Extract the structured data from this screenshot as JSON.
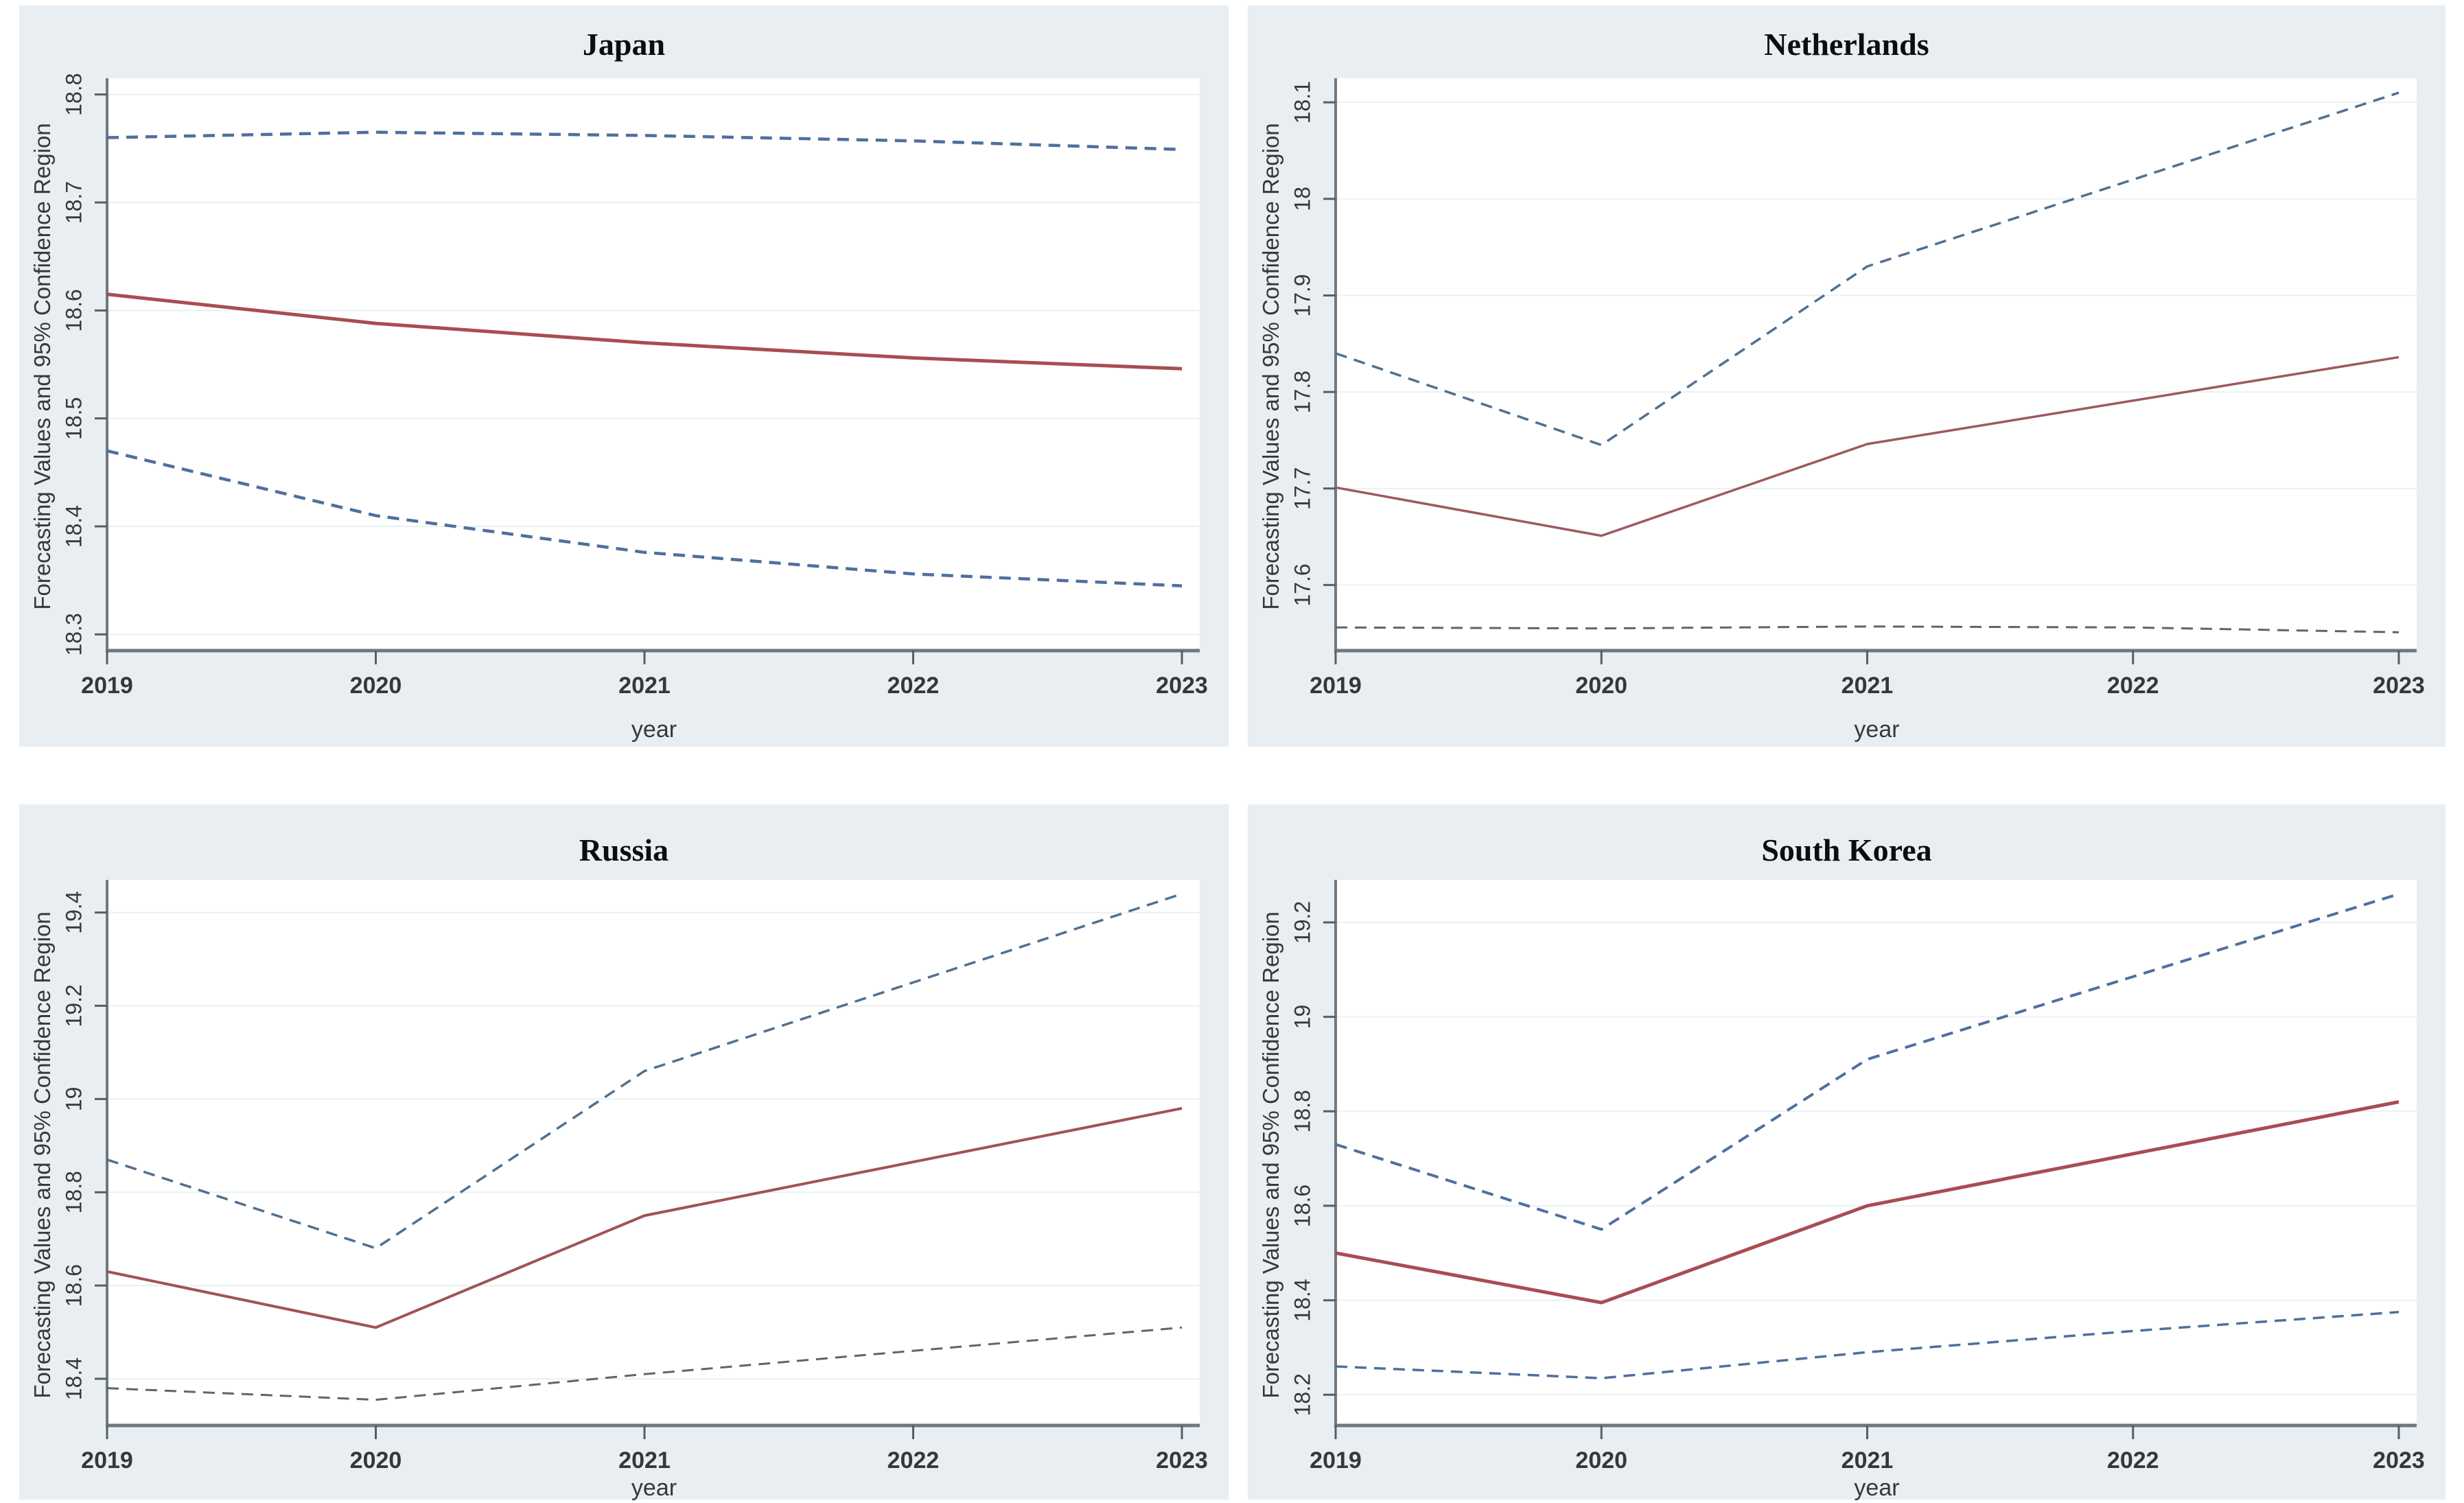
{
  "figure": {
    "description": "Four-panel forecast figure, 95% confidence regions by country",
    "panel_background": "#e8eef1",
    "plot_background": "#ffffff",
    "forecast_color": "#a84d52",
    "ci_color": "#4f6f9e",
    "ci_gray_color": "#5a6673"
  },
  "chart_data": [
    {
      "type": "line",
      "title": "Japan",
      "xlabel": "year",
      "ylabel": "Forecasting Values and 95% Confidence Region",
      "x": [
        2019,
        2020,
        2021,
        2022,
        2023
      ],
      "xticks": [
        2019,
        2020,
        2021,
        2022,
        2023
      ],
      "yticks": [
        18.3,
        18.4,
        18.5,
        18.6,
        18.7,
        18.8
      ],
      "xlim": [
        2019,
        2023
      ],
      "ylim": [
        18.285,
        18.815
      ],
      "grid": "horizontal",
      "legend": "none",
      "series": [
        {
          "name": "upper-95-ci",
          "style": "dashed",
          "color": "#4f6f9e",
          "width": 4.5,
          "values": [
            18.76,
            18.765,
            18.762,
            18.757,
            18.749
          ]
        },
        {
          "name": "point-forecast",
          "style": "solid",
          "color": "#a84d52",
          "width": 5,
          "values": [
            18.615,
            18.588,
            18.57,
            18.556,
            18.546
          ]
        },
        {
          "name": "lower-95-ci",
          "style": "dashed",
          "color": "#4f6f9e",
          "width": 4.5,
          "values": [
            18.47,
            18.41,
            18.376,
            18.356,
            18.345
          ]
        }
      ]
    },
    {
      "type": "line",
      "title": "Netherlands",
      "xlabel": "year",
      "ylabel": "Forecasting Values and 95% Confidence Region",
      "x": [
        2019,
        2020,
        2021,
        2022,
        2023
      ],
      "xticks": [
        2019,
        2020,
        2021,
        2022,
        2023
      ],
      "yticks": [
        17.6,
        17.7,
        17.8,
        17.9,
        18,
        18.1
      ],
      "xlim": [
        2019,
        2023
      ],
      "ylim": [
        17.532,
        18.125
      ],
      "grid": "horizontal",
      "legend": "none",
      "series": [
        {
          "name": "upper-95-ci",
          "style": "dashed",
          "color": "#51708f",
          "width": 3.5,
          "values": [
            17.84,
            17.745,
            17.93,
            18.02,
            18.11
          ]
        },
        {
          "name": "point-forecast",
          "style": "solid",
          "color": "#9d5a5e",
          "width": 3.5,
          "values": [
            17.701,
            17.651,
            17.746,
            17.791,
            17.836
          ]
        },
        {
          "name": "lower-95-ci",
          "style": "dashed",
          "color": "#5a6673",
          "width": 3,
          "values": [
            17.556,
            17.555,
            17.557,
            17.556,
            17.551
          ]
        }
      ]
    },
    {
      "type": "line",
      "title": "Russia",
      "xlabel": "year",
      "ylabel": "Forecasting Values and 95% Confidence Region",
      "x": [
        2019,
        2020,
        2021,
        2022,
        2023
      ],
      "xticks": [
        2019,
        2020,
        2021,
        2022,
        2023
      ],
      "yticks": [
        18.4,
        18.6,
        18.8,
        19,
        19.2,
        19.4
      ],
      "xlim": [
        2019,
        2023
      ],
      "ylim": [
        18.3,
        19.47
      ],
      "grid": "horizontal",
      "legend": "none",
      "series": [
        {
          "name": "upper-95-ci",
          "style": "dashed",
          "color": "#51708f",
          "width": 3.5,
          "values": [
            18.87,
            18.68,
            19.06,
            19.25,
            19.44
          ]
        },
        {
          "name": "point-forecast",
          "style": "solid",
          "color": "#a05356",
          "width": 4,
          "values": [
            18.63,
            18.51,
            18.75,
            18.865,
            18.98
          ]
        },
        {
          "name": "lower-95-ci",
          "style": "dashed",
          "color": "#5a6673",
          "width": 3,
          "values": [
            18.38,
            18.355,
            18.41,
            18.46,
            18.51
          ]
        }
      ]
    },
    {
      "type": "line",
      "title": "South Korea",
      "xlabel": "year",
      "ylabel": "Forecasting Values and 95% Confidence Region",
      "x": [
        2019,
        2020,
        2021,
        2022,
        2023
      ],
      "xticks": [
        2019,
        2020,
        2021,
        2022,
        2023
      ],
      "yticks": [
        18.2,
        18.4,
        18.6,
        18.8,
        19,
        19.2
      ],
      "xlim": [
        2019,
        2023
      ],
      "ylim": [
        18.135,
        19.29
      ],
      "grid": "horizontal",
      "legend": "none",
      "series": [
        {
          "name": "upper-95-ci",
          "style": "dashed",
          "color": "#4f6f9e",
          "width": 4,
          "values": [
            18.73,
            18.55,
            18.91,
            19.085,
            19.26
          ]
        },
        {
          "name": "point-forecast",
          "style": "solid",
          "color": "#a84d52",
          "width": 5,
          "values": [
            18.5,
            18.395,
            18.6,
            18.71,
            18.82
          ]
        },
        {
          "name": "lower-95-ci",
          "style": "dashed",
          "color": "#4f6f9e",
          "width": 3.5,
          "values": [
            18.26,
            18.235,
            18.29,
            18.335,
            18.375
          ]
        }
      ]
    }
  ]
}
